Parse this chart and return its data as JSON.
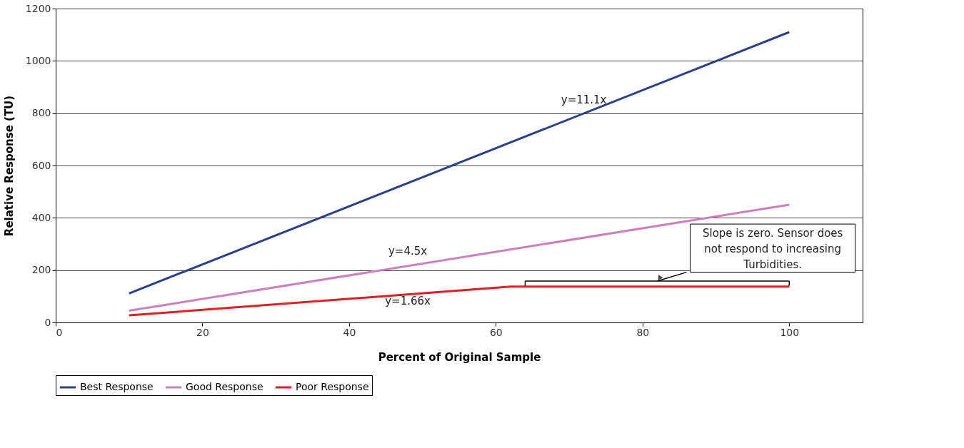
{
  "chart_data": {
    "type": "line",
    "xlabel": "Percent of Original Sample",
    "ylabel": "Relative Response (TU)",
    "series": [
      {
        "name": "Best Response",
        "color": "#2b3f8c",
        "x": [
          10,
          100
        ],
        "values": [
          111,
          1110
        ]
      },
      {
        "name": "Good Response",
        "color": "#cc7fbb",
        "x": [
          10,
          100
        ],
        "values": [
          45,
          450
        ]
      },
      {
        "name": "Poor Response",
        "color": "#e02020",
        "x": [
          10,
          62,
          100
        ],
        "values": [
          27,
          137,
          137
        ]
      }
    ],
    "annotations": [
      "y=11.1x",
      "y=4.5x",
      "y=1.66x",
      "Slope is zero. Sensor does not respond to increasing Turbidities."
    ],
    "xlim": [
      0,
      110
    ],
    "xticks": [
      0,
      20,
      40,
      60,
      80,
      100
    ],
    "ylim": [
      0,
      1200
    ],
    "yticks": [
      0,
      200,
      400,
      600,
      800,
      1000,
      1200
    ],
    "grid": "y",
    "legend": "bottom",
    "marker": "none",
    "line_style": "solid"
  }
}
